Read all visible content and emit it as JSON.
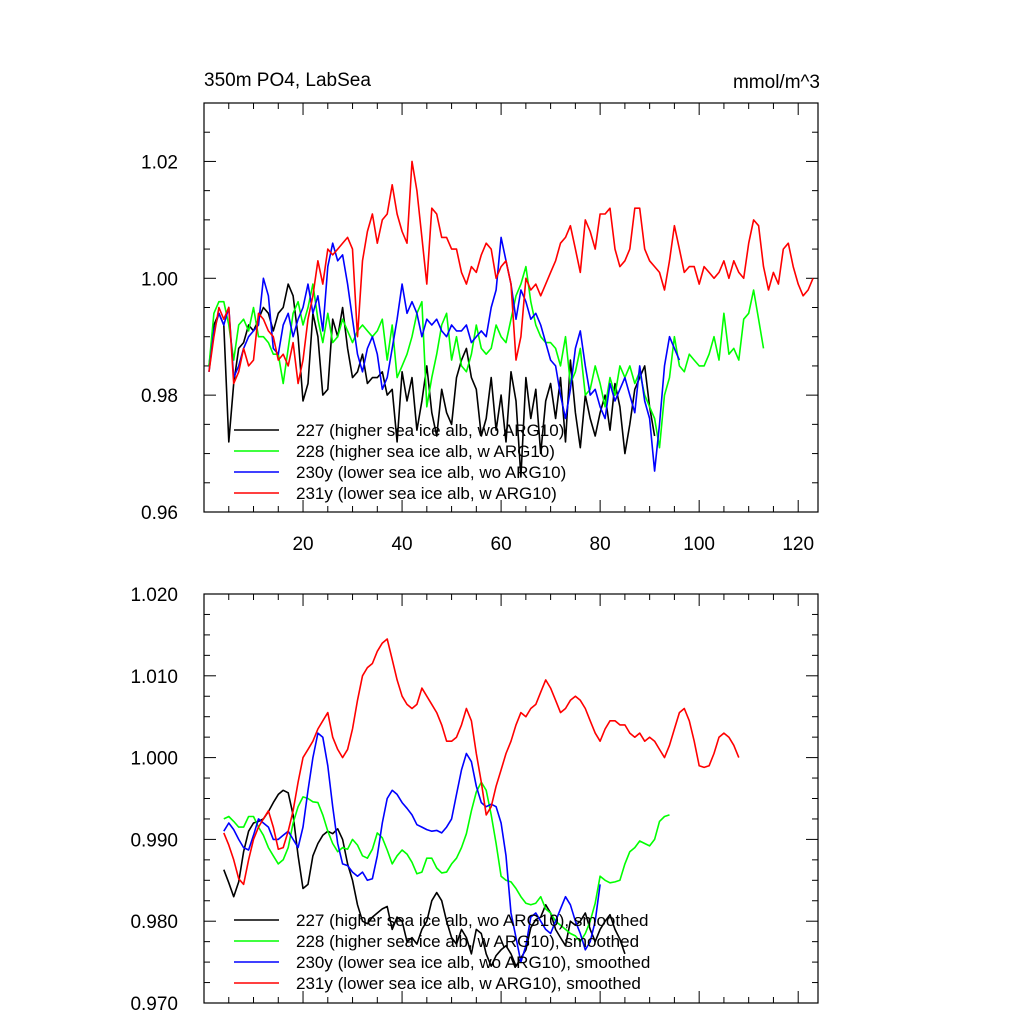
{
  "figure": {
    "title_left": "350m PO4, LabSea",
    "title_right": "mmol/m^3"
  },
  "chart_data": [
    {
      "type": "line",
      "title": "350m PO4, LabSea",
      "units": "mmol/m^3",
      "xlim": [
        0,
        124
      ],
      "ylim": [
        0.96,
        1.03
      ],
      "x_ticks": [
        20,
        40,
        60,
        80,
        100,
        120
      ],
      "x_tick_labels": [
        "20",
        "40",
        "60",
        "80",
        "100",
        "120"
      ],
      "y_ticks": [
        0.96,
        0.98,
        1.0,
        1.02
      ],
      "y_tick_labels": [
        "0.96",
        "0.98",
        "1.00",
        "1.02"
      ],
      "grid": false,
      "legend_position": "bottom-left",
      "series": [
        {
          "name": "227 (higher sea ice alb, wo ARG10)",
          "color": "#000000",
          "x_start": 1,
          "values": [
            0.985,
            0.992,
            0.994,
            0.992,
            0.972,
            0.982,
            0.988,
            0.989,
            0.992,
            0.991,
            0.993,
            0.995,
            0.994,
            0.991,
            0.994,
            0.995,
            0.999,
            0.997,
            0.99,
            0.979,
            0.982,
            0.994,
            0.99,
            0.98,
            0.981,
            0.993,
            0.99,
            0.995,
            0.988,
            0.983,
            0.984,
            0.987,
            0.982,
            0.983,
            0.983,
            0.984,
            0.98,
            0.981,
            0.972,
            0.984,
            0.979,
            0.983,
            0.974,
            0.979,
            0.985,
            0.977,
            0.973,
            0.981,
            0.977,
            0.975,
            0.983,
            0.986,
            0.988,
            0.983,
            0.981,
            0.973,
            0.976,
            0.983,
            0.974,
            0.98,
            0.972,
            0.984,
            0.979,
            0.966,
            0.983,
            0.976,
            0.981,
            0.97,
            0.979,
            0.982,
            0.976,
            0.983,
            0.972,
            0.986,
            0.977,
            0.971,
            0.98,
            0.976,
            0.973,
            0.977,
            0.98,
            0.974,
            0.982,
            0.978,
            0.97,
            0.975,
            0.981,
            0.983,
            0.985,
            0.978,
            0.973
          ]
        },
        {
          "name": "228 (higher sea ice alb, w ARG10)",
          "color": "#00ff00",
          "x_start": 1,
          "values": [
            0.985,
            0.994,
            0.996,
            0.996,
            0.992,
            0.986,
            0.992,
            0.993,
            0.991,
            0.995,
            0.99,
            0.99,
            0.989,
            0.987,
            0.987,
            0.982,
            0.988,
            0.994,
            0.996,
            0.992,
            0.995,
            0.999,
            0.993,
            0.989,
            0.994,
            0.989,
            0.99,
            0.993,
            0.991,
            0.989,
            0.991,
            0.992,
            0.991,
            0.99,
            0.991,
            0.993,
            0.986,
            0.992,
            0.983,
            0.985,
            0.987,
            0.99,
            0.994,
            0.996,
            0.978,
            0.983,
            0.987,
            0.992,
            0.994,
            0.986,
            0.99,
            0.985,
            0.984,
            0.987,
            0.992,
            0.988,
            0.987,
            0.988,
            0.992,
            0.99,
            0.989,
            0.993,
            0.997,
            0.999,
            1.002,
            0.996,
            0.992,
            0.99,
            0.989,
            0.989,
            0.988,
            0.985,
            0.99,
            0.982,
            0.984,
            0.988,
            0.98,
            0.981,
            0.985,
            0.982,
            0.978,
            0.983,
            0.98,
            0.985,
            0.983,
            0.985,
            0.982,
            0.984,
            0.98,
            0.978,
            0.976,
            0.971,
            0.98,
            0.983,
            0.99,
            0.985,
            0.984,
            0.987,
            0.986,
            0.985,
            0.985,
            0.987,
            0.99,
            0.986,
            0.994,
            0.987,
            0.988,
            0.986,
            0.993,
            0.994,
            0.998,
            0.993,
            0.988
          ]
        },
        {
          "name": "230y (lower sea ice alb, wo ARG10)",
          "color": "#0000ff",
          "x_start": 1,
          "values": [
            0.984,
            0.991,
            0.994,
            0.992,
            0.995,
            0.983,
            0.985,
            0.988,
            0.99,
            0.991,
            0.992,
            1.0,
            0.997,
            0.988,
            0.987,
            0.992,
            0.994,
            0.99,
            0.993,
            0.995,
            0.999,
            0.994,
            0.997,
            0.991,
            1.002,
            1.006,
            1.003,
            1.004,
            0.999,
            0.993,
            0.987,
            0.984,
            0.988,
            0.99,
            0.987,
            0.981,
            0.983,
            0.988,
            0.993,
            0.999,
            0.994,
            0.996,
            0.994,
            0.99,
            0.993,
            0.992,
            0.993,
            0.991,
            0.99,
            0.992,
            0.991,
            0.991,
            0.992,
            0.989,
            0.99,
            0.991,
            0.99,
            0.995,
            0.998,
            1.007,
            1.003,
            0.999,
            0.993,
            0.998,
            0.996,
            0.993,
            0.994,
            0.992,
            0.989,
            0.986,
            0.985,
            0.98,
            0.976,
            0.981,
            0.988,
            0.991,
            0.985,
            0.98,
            0.981,
            0.978,
            0.976,
            0.982,
            0.979,
            0.981,
            0.983,
            0.98,
            0.977,
            0.985,
            0.979,
            0.976,
            0.967,
            0.975,
            0.985,
            0.99,
            0.988,
            0.986
          ]
        },
        {
          "name": "231y (lower sea ice alb, w ARG10)",
          "color": "#ff0000",
          "x_start": 1,
          "values": [
            0.984,
            0.99,
            0.995,
            0.993,
            0.995,
            0.982,
            0.984,
            0.988,
            0.985,
            0.986,
            0.994,
            0.993,
            0.991,
            0.99,
            0.986,
            0.987,
            0.985,
            0.989,
            0.982,
            0.986,
            0.993,
            0.997,
            1.003,
            0.999,
            1.005,
            1.004,
            1.005,
            1.006,
            1.007,
            1.005,
            0.99,
            1.003,
            1.008,
            1.011,
            1.006,
            1.01,
            1.011,
            1.016,
            1.011,
            1.008,
            1.006,
            1.02,
            1.015,
            1.007,
            0.999,
            1.012,
            1.011,
            1.007,
            1.007,
            1.005,
            1.005,
            1.001,
            0.999,
            1.002,
            1.001,
            1.004,
            1.006,
            1.005,
            1.0,
            1.002,
            1.003,
            0.999,
            0.986,
            0.99,
            1.0,
            0.998,
            0.999,
            0.997,
            0.999,
            1.001,
            1.003,
            1.006,
            1.007,
            1.009,
            1.005,
            1.001,
            1.01,
            1.008,
            1.005,
            1.011,
            1.011,
            1.012,
            1.005,
            1.002,
            1.003,
            1.005,
            1.012,
            1.012,
            1.005,
            1.003,
            1.002,
            1.001,
            0.998,
            1.003,
            1.009,
            1.005,
            1.001,
            1.002,
            1.002,
            0.999,
            1.002,
            1.001,
            1.0,
            1.001,
            1.003,
            1.0,
            1.003,
            1.001,
            1.0,
            1.006,
            1.01,
            1.009,
            1.002,
            0.998,
            1.001,
            0.999,
            1.005,
            1.006,
            1.002,
            0.999,
            0.997,
            0.998,
            1.0
          ]
        }
      ]
    },
    {
      "type": "line",
      "xlim": [
        0,
        124
      ],
      "ylim": [
        0.97,
        1.02
      ],
      "x_ticks": [
        20,
        40,
        60,
        80,
        100,
        120
      ],
      "x_tick_labels": [],
      "y_ticks": [
        0.97,
        0.98,
        0.99,
        1.0,
        1.01,
        1.02
      ],
      "y_tick_labels": [
        "0.970",
        "0.980",
        "0.990",
        "1.000",
        "1.010",
        "1.020"
      ],
      "grid": false,
      "legend_position": "bottom-left",
      "series": [
        {
          "name": "227 (higher sea ice alb, wo ARG10), smoothed",
          "color": "#000000",
          "x_start": 4,
          "values": [
            0.9863,
            0.9847,
            0.983,
            0.9848,
            0.9885,
            0.991,
            0.992,
            0.9922,
            0.9925,
            0.9934,
            0.9945,
            0.9955,
            0.996,
            0.9957,
            0.993,
            0.988,
            0.984,
            0.9845,
            0.988,
            0.9895,
            0.9905,
            0.991,
            0.9907,
            0.9913,
            0.99,
            0.987,
            0.985,
            0.982,
            0.98,
            0.9797,
            0.9805,
            0.981,
            0.9815,
            0.9818,
            0.979,
            0.9805,
            0.98,
            0.9775,
            0.978,
            0.9772,
            0.979,
            0.98,
            0.9825,
            0.9835,
            0.9825,
            0.98,
            0.978,
            0.9772,
            0.979,
            0.978,
            0.976,
            0.979,
            0.9785,
            0.976,
            0.9745,
            0.9758,
            0.9765,
            0.977,
            0.976,
            0.9745,
            0.9755,
            0.9765,
            0.9792,
            0.9802,
            0.9805,
            0.982,
            0.981,
            0.979,
            0.978,
            0.977,
            0.98,
            0.9795,
            0.98,
            0.981,
            0.979,
            0.9775,
            0.979,
            0.98,
            0.9808,
            0.979,
            0.9778,
            0.976
          ]
        },
        {
          "name": "228 (higher sea ice alb, w ARG10), smoothed",
          "color": "#00ff00",
          "x_start": 4,
          "values": [
            0.9925,
            0.9928,
            0.9922,
            0.9915,
            0.9915,
            0.9928,
            0.9928,
            0.9915,
            0.9905,
            0.989,
            0.988,
            0.987,
            0.9875,
            0.989,
            0.992,
            0.994,
            0.9952,
            0.995,
            0.9946,
            0.9945,
            0.993,
            0.991,
            0.9895,
            0.9885,
            0.989,
            0.9888,
            0.99,
            0.9893,
            0.988,
            0.9877,
            0.9888,
            0.9908,
            0.9902,
            0.9887,
            0.987,
            0.988,
            0.9887,
            0.9882,
            0.9872,
            0.9858,
            0.986,
            0.9877,
            0.9877,
            0.9865,
            0.9859,
            0.986,
            0.987,
            0.9877,
            0.989,
            0.9907,
            0.9935,
            0.9958,
            0.997,
            0.996,
            0.993,
            0.9895,
            0.9855,
            0.985,
            0.9848,
            0.984,
            0.983,
            0.9822,
            0.982,
            0.9822,
            0.983,
            0.9815,
            0.981,
            0.98,
            0.9795,
            0.979,
            0.9785,
            0.9782,
            0.9775,
            0.9785,
            0.98,
            0.9822,
            0.9855,
            0.985,
            0.9847,
            0.9848,
            0.985,
            0.987,
            0.9885,
            0.989,
            0.9898,
            0.9895,
            0.9892,
            0.99,
            0.9922,
            0.9928,
            0.993
          ]
        },
        {
          "name": "230y (lower sea ice alb, wo ARG10), smoothed",
          "color": "#0000ff",
          "x_start": 4,
          "values": [
            0.991,
            0.992,
            0.9912,
            0.99,
            0.989,
            0.9887,
            0.9905,
            0.9925,
            0.992,
            0.9915,
            0.99,
            0.99,
            0.9905,
            0.991,
            0.99,
            0.989,
            0.9915,
            0.996,
            1.0,
            1.003,
            1.0025,
            0.999,
            0.994,
            0.9895,
            0.987,
            0.9868,
            0.986,
            0.9855,
            0.986,
            0.985,
            0.9852,
            0.988,
            0.992,
            0.995,
            0.996,
            0.9955,
            0.9945,
            0.9938,
            0.993,
            0.9918,
            0.9915,
            0.9912,
            0.991,
            0.9911,
            0.9908,
            0.9915,
            0.9925,
            0.9955,
            0.9985,
            1.0005,
            0.9995,
            0.9965,
            0.9945,
            0.994,
            0.9943,
            0.994,
            0.992,
            0.988,
            0.981,
            0.978,
            0.975,
            0.977,
            0.9805,
            0.981,
            0.98,
            0.979,
            0.9785,
            0.98,
            0.9815,
            0.983,
            0.982,
            0.98,
            0.9785,
            0.9765,
            0.9775,
            0.98,
            0.9845
          ]
        },
        {
          "name": "231y (lower sea ice alb, w ARG10), smoothed",
          "color": "#ff0000",
          "x_start": 4,
          "values": [
            0.9908,
            0.9893,
            0.9875,
            0.9852,
            0.9845,
            0.9875,
            0.99,
            0.9915,
            0.9925,
            0.9935,
            0.9915,
            0.9888,
            0.989,
            0.991,
            0.9935,
            0.997,
            1.0,
            1.001,
            1.002,
            1.0035,
            1.0045,
            1.0055,
            1.0025,
            1.001,
            1.0,
            1.001,
            1.0035,
            1.007,
            1.01,
            1.011,
            1.0115,
            1.013,
            1.014,
            1.0145,
            1.012,
            1.0095,
            1.0075,
            1.0065,
            1.006,
            1.0065,
            1.0085,
            1.0075,
            1.0065,
            1.0055,
            1.004,
            1.002,
            1.002,
            1.0025,
            1.004,
            1.006,
            1.0045,
            1.0005,
            0.997,
            0.993,
            0.994,
            0.9965,
            0.9985,
            1.0005,
            1.002,
            1.004,
            1.0055,
            1.005,
            1.006,
            1.0065,
            1.008,
            1.0095,
            1.0085,
            1.007,
            1.0055,
            1.006,
            1.007,
            1.0075,
            1.007,
            1.006,
            1.0045,
            1.003,
            1.002,
            1.0035,
            1.0045,
            1.0045,
            1.004,
            1.004,
            1.003,
            1.0025,
            1.003,
            1.002,
            1.0025,
            1.002,
            1.001,
            1.0,
            1.0015,
            1.0035,
            1.0055,
            1.006,
            1.0045,
            1.002,
            0.999,
            0.9988,
            0.999,
            1.0005,
            1.0025,
            1.003,
            1.0025,
            1.0015,
            1.0
          ]
        }
      ]
    }
  ]
}
